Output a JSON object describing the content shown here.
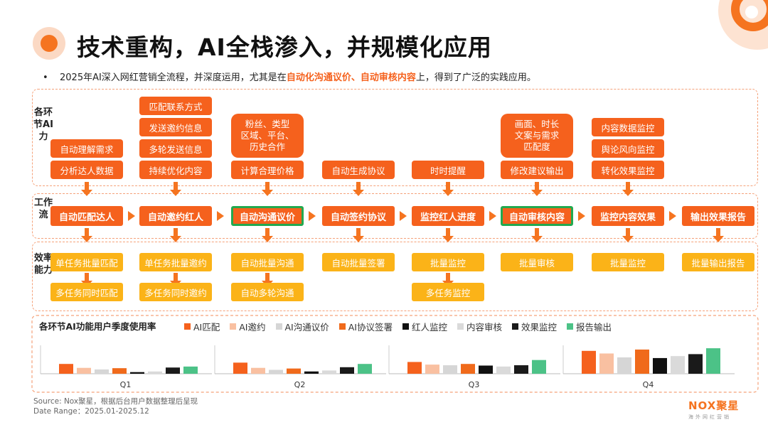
{
  "title": "技术重构，AI全栈渗入，并规模化应用",
  "subtitle": {
    "bullet": "•",
    "prefix": "2025年AI深入网红营销全流程，并深度运用，尤其是在",
    "highlight": "自动化沟通议价、自动审核内容",
    "suffix": "上，得到了广泛的实践应用。"
  },
  "sections": {
    "ai": "各环节AI力",
    "flow": "工作流",
    "efficiency": "效率能力"
  },
  "stages": [
    {
      "ai": [
        "自动理解需求",
        "分析达人数据"
      ],
      "flow": "自动匹配达人",
      "flow_hl": false,
      "eff": [
        "单任务批量匹配",
        "多任务同时匹配"
      ]
    },
    {
      "ai": [
        "匹配联系方式",
        "发送邀约信息",
        "多轮发送信息",
        "持续优化内容"
      ],
      "flow": "自动邀约红人",
      "flow_hl": false,
      "eff": [
        "单任务批量邀约",
        "多任务同时邀约"
      ]
    },
    {
      "ai": [
        "粉丝、类型\n区域、平台、\n历史合作",
        "计算合理价格"
      ],
      "flow": "自动沟通议价",
      "flow_hl": true,
      "eff": [
        "自动批量沟通",
        "自动多轮沟通"
      ]
    },
    {
      "ai": [
        "自动生成协议"
      ],
      "flow": "自动签约协议",
      "flow_hl": false,
      "eff": [
        "自动批量签署"
      ]
    },
    {
      "ai": [
        "时时提醒"
      ],
      "flow": "监控红人进度",
      "flow_hl": false,
      "eff": [
        "批量监控",
        "多任务监控"
      ]
    },
    {
      "ai": [
        "画面、时长\n文案与需求\n匹配度",
        "修改建议输出"
      ],
      "flow": "自动审核内容",
      "flow_hl": true,
      "eff": [
        "批量审核"
      ]
    },
    {
      "ai": [
        "内容数据监控",
        "舆论风向监控",
        "转化效果监控"
      ],
      "flow": "监控内容效果",
      "flow_hl": false,
      "eff": [
        "批量监控"
      ]
    },
    {
      "ai": [],
      "flow": "输出效果报告",
      "flow_hl": false,
      "eff": [
        "批量输出报告"
      ]
    }
  ],
  "chart_data": {
    "type": "bar",
    "title": "各环节AI功能用户季度使用率",
    "categories": [
      "Q1",
      "Q2",
      "Q3",
      "Q4"
    ],
    "series": [
      {
        "name": "AI匹配",
        "color": "#f5611d",
        "values": [
          0.3,
          0.34,
          0.36,
          0.7
        ]
      },
      {
        "name": "AI邀约",
        "color": "#f9c0a1",
        "values": [
          0.18,
          0.18,
          0.28,
          0.62
        ]
      },
      {
        "name": "AI沟通议价",
        "color": "#d6d6d6",
        "values": [
          0.13,
          0.12,
          0.26,
          0.5
        ]
      },
      {
        "name": "AI协议签署",
        "color": "#f06a1b",
        "values": [
          0.17,
          0.16,
          0.3,
          0.74
        ]
      },
      {
        "name": "红人监控",
        "color": "#111111",
        "values": [
          0.05,
          0.07,
          0.25,
          0.48
        ]
      },
      {
        "name": "内容审核",
        "color": "#dadada",
        "values": [
          0.07,
          0.1,
          0.22,
          0.54
        ]
      },
      {
        "name": "效果监控",
        "color": "#1a1a1a",
        "values": [
          0.19,
          0.2,
          0.26,
          0.6
        ]
      },
      {
        "name": "报告输出",
        "color": "#4cc287",
        "values": [
          0.22,
          0.3,
          0.42,
          0.78
        ]
      }
    ]
  },
  "source": "Source:    Nox聚星，根据后台用户数据整理后呈现",
  "date_range": "Date Range：2025.01-2025.12",
  "logo": {
    "name": "NOX聚星",
    "tagline": "海外网红营销"
  }
}
